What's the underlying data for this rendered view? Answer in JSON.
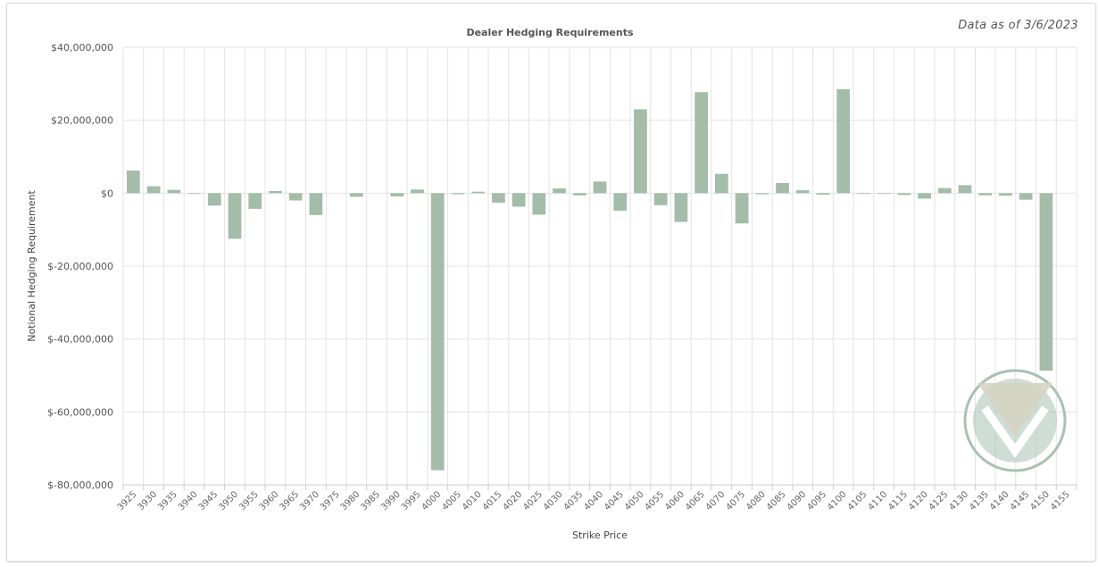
{
  "header": {
    "data_as_of": "Data as of 3/6/2023"
  },
  "colors": {
    "bar": "#a3bda8",
    "grid": "#e3e3e3",
    "axis": "#cccccc",
    "logo": "#a7c2b2",
    "logo_top": "#d4d5c1"
  },
  "logo": {
    "name": "v-logo-icon"
  },
  "chart_data": {
    "type": "bar",
    "title": "Dealer Hedging Requirements",
    "xlabel": "Strike Price",
    "ylabel": "Notional Hedging Requirement",
    "ylim": [
      -80000000,
      40000000
    ],
    "yticks": [
      40000000,
      20000000,
      0,
      -20000000,
      -40000000,
      -60000000,
      -80000000
    ],
    "ytick_labels": [
      "$40,000,000",
      "$20,000,000",
      "$0",
      "$-20,000,000",
      "$-40,000,000",
      "$-60,000,000",
      "$-80,000,000"
    ],
    "grid": true,
    "categories": [
      "3925",
      "3930",
      "3935",
      "3940",
      "3945",
      "3950",
      "3955",
      "3960",
      "3965",
      "3970",
      "3975",
      "3980",
      "3985",
      "3990",
      "3995",
      "4000",
      "4005",
      "4010",
      "4015",
      "4020",
      "4025",
      "4030",
      "4035",
      "4040",
      "4045",
      "4050",
      "4055",
      "4060",
      "4065",
      "4070",
      "4075",
      "4080",
      "4085",
      "4090",
      "4095",
      "4100",
      "4105",
      "4110",
      "4115",
      "4120",
      "4125",
      "4130",
      "4135",
      "4140",
      "4145",
      "4150",
      "4155"
    ],
    "values": [
      6200000,
      1900000,
      900000,
      -200000,
      -3400000,
      -12500000,
      -4300000,
      600000,
      -2000000,
      -6000000,
      0,
      -1000000,
      0,
      -900000,
      1000000,
      -76000000,
      -300000,
      400000,
      -2600000,
      -3700000,
      -5900000,
      1300000,
      -600000,
      3200000,
      -4800000,
      23000000,
      -3300000,
      -7900000,
      27700000,
      5300000,
      -8300000,
      -300000,
      2800000,
      800000,
      -400000,
      28500000,
      -200000,
      -100000,
      -500000,
      -1500000,
      1400000,
      2200000,
      -600000,
      -700000,
      -1800000,
      -48700000,
      0
    ]
  }
}
